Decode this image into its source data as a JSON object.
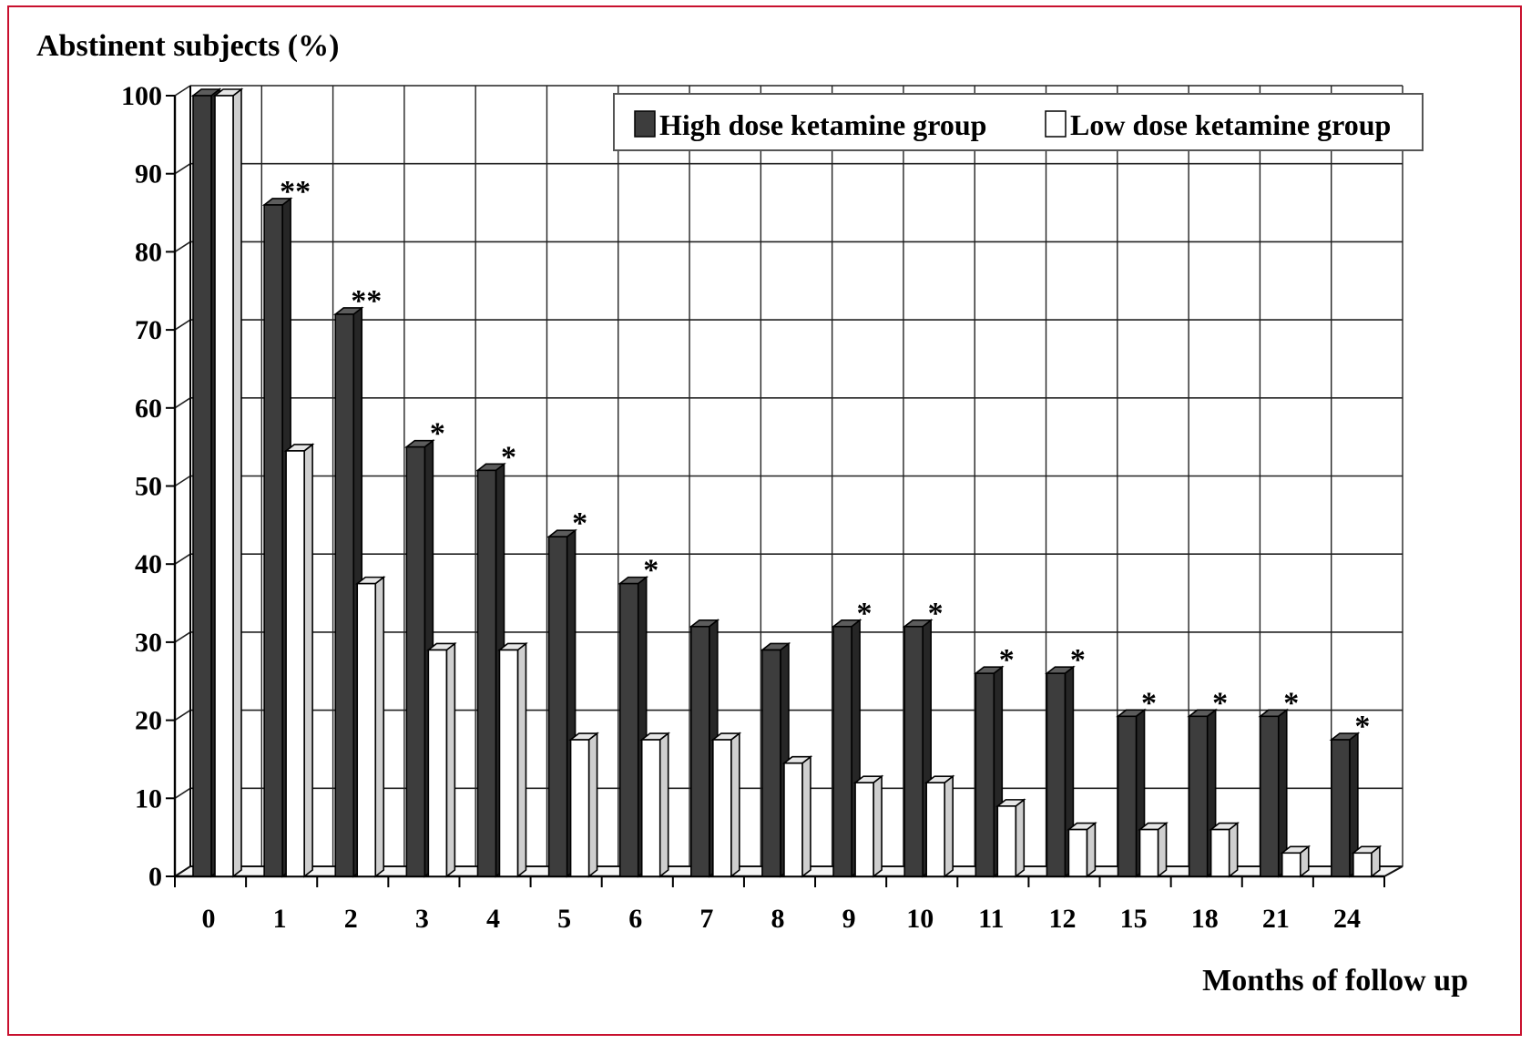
{
  "chart_data": {
    "type": "bar",
    "ylabel": "Abstinent subjects (%)",
    "xlabel": "Months of follow up",
    "ylim": [
      0,
      100
    ],
    "yticks": [
      0,
      10,
      20,
      30,
      40,
      50,
      60,
      70,
      80,
      90,
      100
    ],
    "grid": true,
    "legend_position": "top-right",
    "categories": [
      "0",
      "1",
      "2",
      "3",
      "4",
      "5",
      "6",
      "7",
      "8",
      "9",
      "10",
      "11",
      "12",
      "15",
      "18",
      "21",
      "24"
    ],
    "series": [
      {
        "name": "High dose ketamine group",
        "color": "#3d3d3d",
        "values": [
          100,
          86,
          72,
          55,
          52,
          43.5,
          37.5,
          32,
          29,
          32,
          32,
          26,
          26,
          20.5,
          20.5,
          20.5,
          17.5
        ]
      },
      {
        "name": "Low dose ketamine group",
        "color": "#ffffff",
        "values": [
          100,
          54.5,
          37.5,
          29,
          29,
          17.5,
          17.5,
          17.5,
          14.5,
          12,
          12,
          9,
          6,
          6,
          6,
          3,
          3
        ]
      }
    ],
    "annotations": [
      "",
      "**",
      "**",
      "*",
      "*",
      "*",
      "*",
      "",
      "",
      "*",
      "*",
      "*",
      "*",
      "*",
      "*",
      "*",
      "*"
    ]
  }
}
